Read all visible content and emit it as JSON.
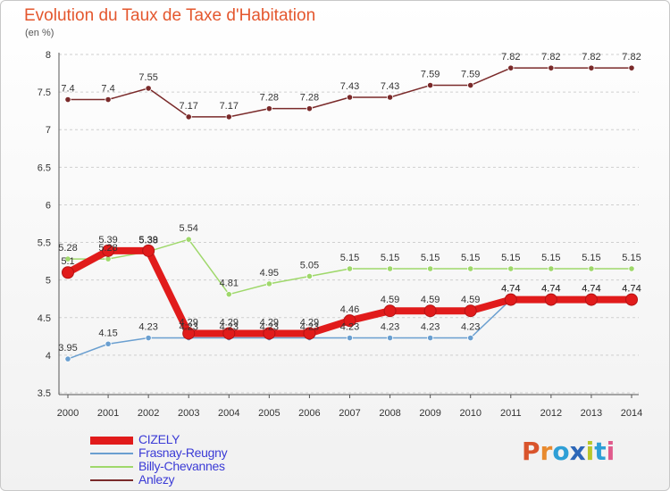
{
  "chart_data": {
    "type": "line",
    "title": "Evolution du Taux de Taxe d'Habitation",
    "unit_label": "(en %)",
    "xlabel": "",
    "ylabel": "",
    "x": [
      "2000",
      "2001",
      "2002",
      "2003",
      "2004",
      "2005",
      "2006",
      "2007",
      "2008",
      "2009",
      "2010",
      "2011",
      "2012",
      "2013",
      "2014"
    ],
    "ylim": [
      3.5,
      8
    ],
    "yticks": [
      "3.5",
      "4",
      "4.5",
      "5",
      "5.5",
      "6",
      "6.5",
      "7",
      "7.5",
      "8"
    ],
    "grid": true,
    "legend_position": "bottom-left",
    "series": [
      {
        "name": "CIZELY",
        "color": "#e11b1b",
        "values": [
          5.1,
          5.39,
          5.39,
          4.29,
          4.29,
          4.29,
          4.29,
          4.46,
          4.59,
          4.59,
          4.59,
          4.74,
          4.74,
          4.74,
          4.74
        ],
        "labels": [
          "5.1",
          "5.39",
          "5.39",
          "4.29",
          "4.29",
          "4.29",
          "4.29",
          "4.46",
          "4.59",
          "4.59",
          "4.59",
          "4.74",
          "4.74",
          "4.74",
          "4.74"
        ]
      },
      {
        "name": "Frasnay-Reugny",
        "color": "#6a9fd0",
        "values": [
          3.95,
          4.15,
          4.23,
          4.23,
          4.23,
          4.23,
          4.23,
          4.23,
          4.23,
          4.23,
          4.23,
          4.74,
          4.74,
          4.74,
          4.74
        ],
        "labels": [
          "3.95",
          "4.15",
          "4.23",
          "4.23",
          "4.23",
          "4.23",
          "4.23",
          "4.23",
          "4.23",
          "4.23",
          "4.23",
          "4.74",
          "4.74",
          "4.74",
          "4.74"
        ]
      },
      {
        "name": "Billy-Chevannes",
        "color": "#9fd86b",
        "values": [
          5.28,
          5.28,
          5.38,
          5.54,
          4.81,
          4.95,
          5.05,
          5.15,
          5.15,
          5.15,
          5.15,
          5.15,
          5.15,
          5.15,
          5.15
        ],
        "labels": [
          "5.28",
          "5.28",
          "5.38",
          "5.54",
          "4.81",
          "4.95",
          "5.05",
          "5.15",
          "5.15",
          "5.15",
          "5.15",
          "5.15",
          "5.15",
          "5.15",
          "5.15"
        ]
      },
      {
        "name": "Anlezy",
        "color": "#7a2a2a",
        "values": [
          7.4,
          7.4,
          7.55,
          7.17,
          7.17,
          7.28,
          7.28,
          7.43,
          7.43,
          7.59,
          7.59,
          7.82,
          7.82,
          7.82,
          7.82
        ],
        "labels": [
          "7.4",
          "7.4",
          "7.55",
          "7.17",
          "7.17",
          "7.28",
          "7.28",
          "7.43",
          "7.43",
          "7.59",
          "7.59",
          "7.82",
          "7.82",
          "7.82",
          "7.82"
        ]
      }
    ]
  },
  "logo": {
    "text": "Proxiti",
    "colors": [
      "#d9542c",
      "#e88a2e",
      "#2e9fd6",
      "#2d67b8",
      "#b9c72a",
      "#2e9fd6",
      "#e05a8c"
    ]
  }
}
